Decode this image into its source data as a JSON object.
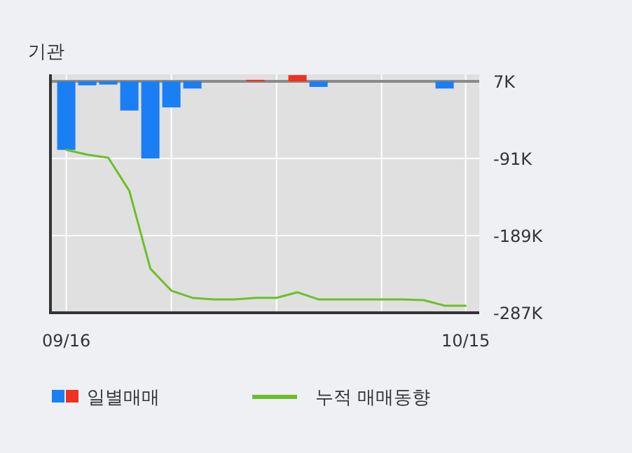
{
  "chart_data": {
    "type": "bar",
    "title": "기관",
    "categories": [
      "09/16",
      null,
      null,
      null,
      null,
      null,
      null,
      null,
      null,
      null,
      null,
      null,
      null,
      null,
      null,
      null,
      null,
      null,
      null,
      "10/15"
    ],
    "series": [
      {
        "name": "일별매매",
        "base": [
          7,
          7,
          7,
          7,
          7,
          7,
          7,
          null,
          null,
          7,
          null,
          7,
          7,
          null,
          null,
          null,
          null,
          null,
          7,
          null
        ],
        "colors": [
          "#1a7ef5",
          "#1a7ef5",
          "#1a7ef5",
          "#1a7ef5",
          "#1a7ef5",
          "#1a7ef5",
          "#1a7ef5",
          "#1a7ef5",
          "#1a7ef5",
          "#f03020",
          "#1a7ef5",
          "#f03020",
          "#1a7ef5",
          "#1a7ef5",
          "#1a7ef5",
          "#1a7ef5",
          "#1a7ef5",
          "#1a7ef5",
          "#1a7ef5",
          "#1a7ef5"
        ],
        "values": [
          -87,
          -5,
          -4,
          -37,
          -98,
          -33,
          -9,
          null,
          null,
          2,
          null,
          8,
          -7,
          null,
          null,
          null,
          null,
          null,
          -9,
          null
        ]
      },
      {
        "name": "누적 매매동향",
        "type": "line",
        "color": "#6cbf2a",
        "values": [
          -80,
          -86,
          -90,
          -132,
          -231,
          -259,
          -268,
          -270,
          -270,
          -268,
          -268,
          -261,
          -270,
          -270,
          -270,
          -270,
          -270,
          -271,
          -278,
          -278
        ]
      }
    ],
    "ylim": [
      -287,
      16
    ],
    "yticks": [
      {
        "value": 7,
        "label": "7K"
      },
      {
        "value": -91,
        "label": "-91K"
      },
      {
        "value": -189,
        "label": "-189K"
      },
      {
        "value": -287,
        "label": "-287K"
      }
    ],
    "ref_lines": [
      {
        "axis": "y",
        "value": 7,
        "color": "#8a8a8a"
      }
    ],
    "grid": true,
    "legend": "bottom"
  }
}
